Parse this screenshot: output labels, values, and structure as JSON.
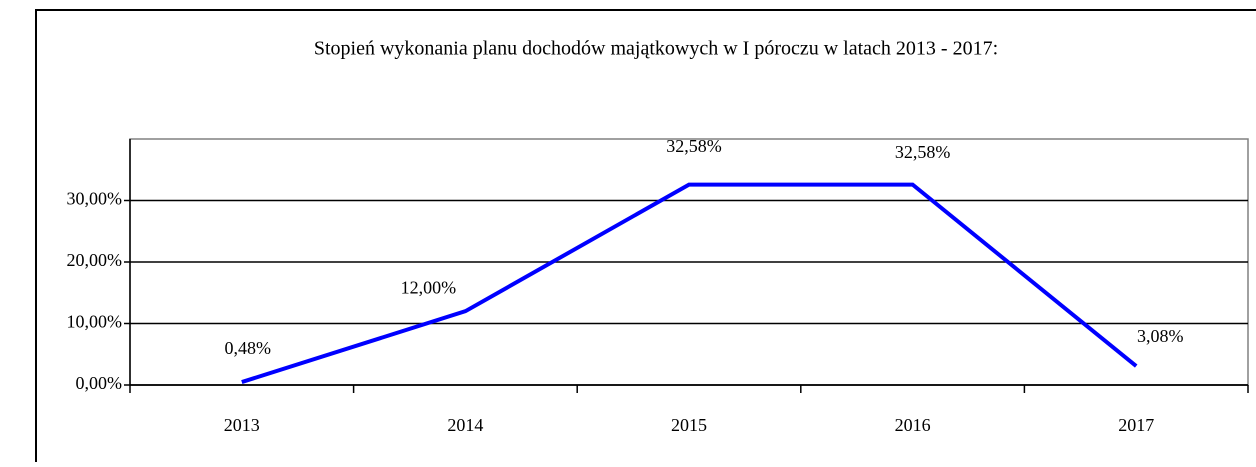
{
  "chart_data": {
    "type": "line",
    "title": "Stopień wykonania planu dochodów majątkowych w I póroczu w latach 2013 - 2017:",
    "categories": [
      "2013",
      "2014",
      "2015",
      "2016",
      "2017"
    ],
    "series": [
      {
        "name": "Stopień wykonania",
        "color": "#0000ff",
        "values": [
          0.48,
          12.0,
          32.58,
          32.58,
          3.08
        ],
        "value_labels": [
          "0,48%",
          "12,00%",
          "32,58%",
          "32,58%",
          "3,08%"
        ]
      }
    ],
    "ylim": [
      0,
      40
    ],
    "yticks": [
      {
        "value": 0,
        "label": "0,00%"
      },
      {
        "value": 10,
        "label": "10,00%"
      },
      {
        "value": 20,
        "label": "20,00%"
      },
      {
        "value": 30,
        "label": "30,00%"
      }
    ],
    "grid": true
  }
}
